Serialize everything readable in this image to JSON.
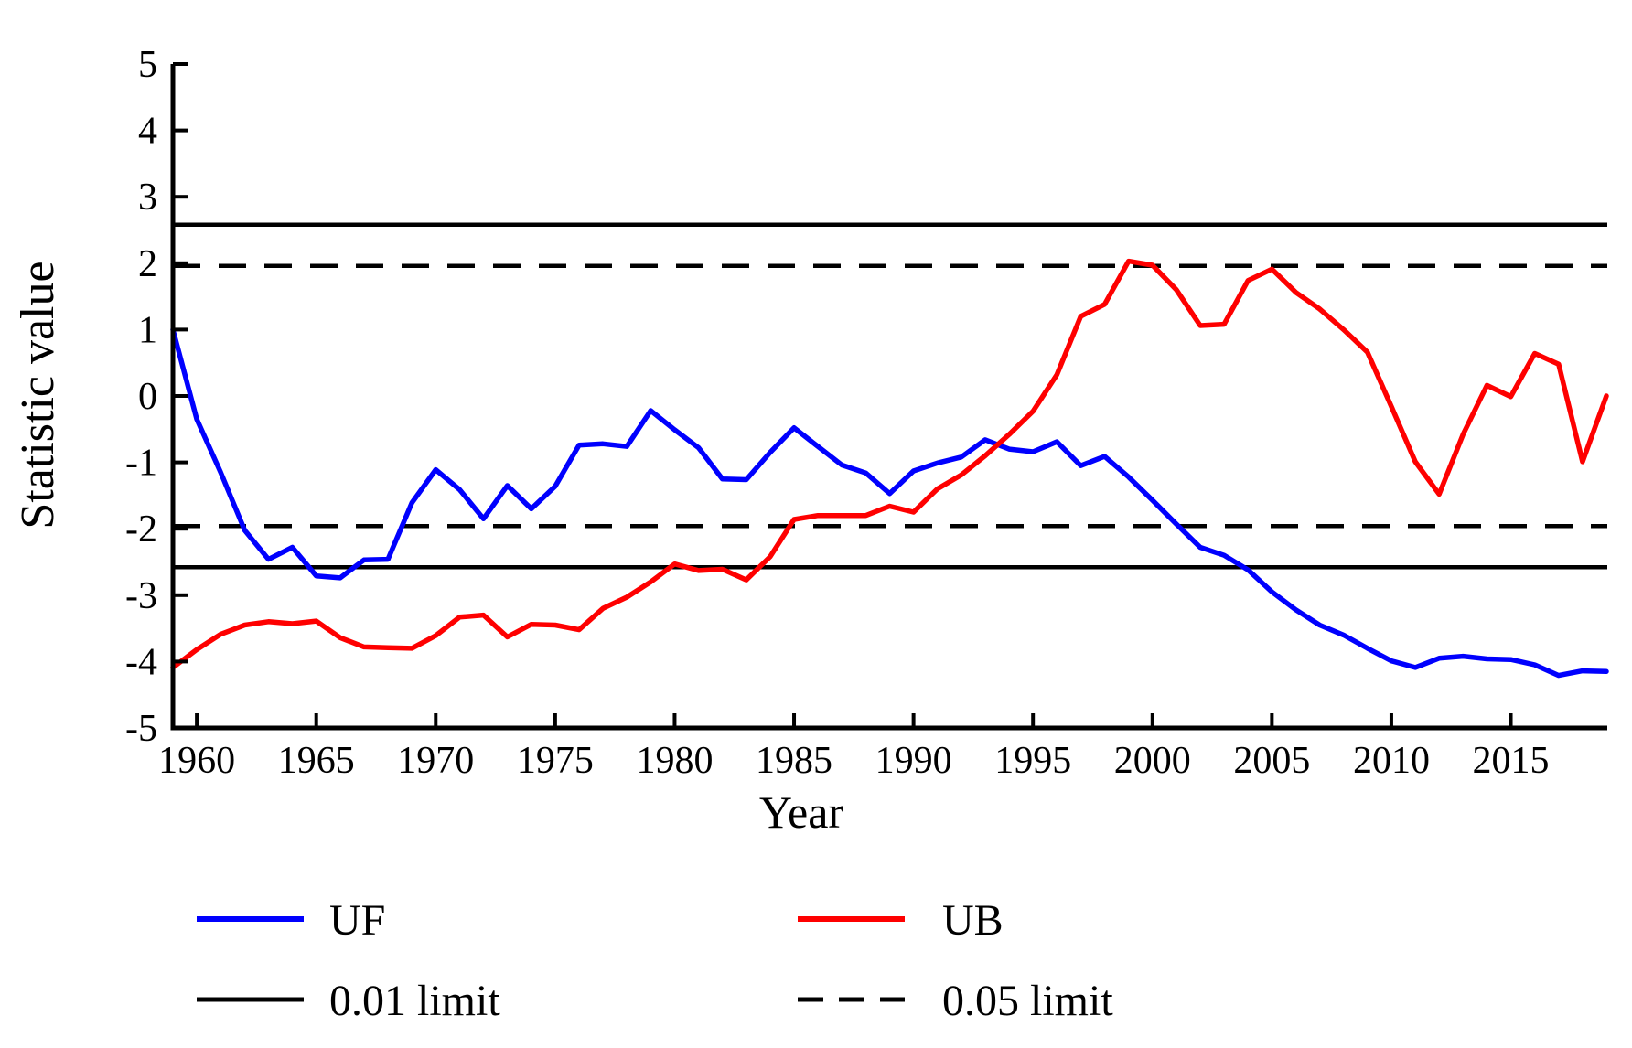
{
  "chart_data": {
    "type": "line",
    "title": "",
    "xlabel": "Year",
    "ylabel": "Statistic value",
    "xlim": [
      1959,
      2019
    ],
    "ylim": [
      -5,
      5
    ],
    "grid": false,
    "legend_position": "bottom",
    "x_ticks": [
      1960,
      1965,
      1970,
      1975,
      1980,
      1985,
      1990,
      1995,
      2000,
      2005,
      2010,
      2015
    ],
    "y_ticks": [
      5,
      4,
      3,
      2,
      1,
      0,
      -1,
      -2,
      -3,
      -4,
      -5
    ],
    "x": [
      1959,
      1960,
      1961,
      1962,
      1963,
      1964,
      1965,
      1966,
      1967,
      1968,
      1969,
      1970,
      1971,
      1972,
      1973,
      1974,
      1975,
      1976,
      1977,
      1978,
      1979,
      1980,
      1981,
      1982,
      1983,
      1984,
      1985,
      1986,
      1987,
      1988,
      1989,
      1990,
      1991,
      1992,
      1993,
      1994,
      1995,
      1996,
      1997,
      1998,
      1999,
      2000,
      2001,
      2002,
      2003,
      2004,
      2005,
      2006,
      2007,
      2008,
      2009,
      2010,
      2011,
      2012,
      2013,
      2014,
      2015,
      2016,
      2017,
      2018,
      2019
    ],
    "series": [
      {
        "name": "UF",
        "color": "#0000fe",
        "style": "solid",
        "values": [
          1.0,
          -0.35,
          -1.15,
          -2.02,
          -2.46,
          -2.28,
          -2.71,
          -2.74,
          -2.47,
          -2.46,
          -1.61,
          -1.11,
          -1.41,
          -1.85,
          -1.35,
          -1.7,
          -1.36,
          -0.74,
          -0.72,
          -0.76,
          -0.22,
          -0.51,
          -0.78,
          -1.25,
          -1.26,
          -0.85,
          -0.48,
          -0.76,
          -1.04,
          -1.16,
          -1.47,
          -1.13,
          -1.01,
          -0.92,
          -0.66,
          -0.8,
          -0.84,
          -0.69,
          -1.05,
          -0.91,
          -1.22,
          -1.57,
          -1.93,
          -2.28,
          -2.4,
          -2.62,
          -2.95,
          -3.22,
          -3.45,
          -3.6,
          -3.8,
          -3.99,
          -4.09,
          -3.95,
          -3.92,
          -3.96,
          -3.97,
          -4.05,
          -4.21,
          -4.14,
          -4.15
        ]
      },
      {
        "name": "UB",
        "color": "#fe0000",
        "style": "solid",
        "values": [
          -4.09,
          -3.82,
          -3.59,
          -3.45,
          -3.4,
          -3.43,
          -3.39,
          -3.64,
          -3.78,
          -3.79,
          -3.8,
          -3.61,
          -3.33,
          -3.3,
          -3.63,
          -3.44,
          -3.45,
          -3.52,
          -3.2,
          -3.03,
          -2.8,
          -2.53,
          -2.63,
          -2.61,
          -2.77,
          -2.42,
          -1.86,
          -1.8,
          -1.8,
          -1.8,
          -1.66,
          -1.75,
          -1.4,
          -1.19,
          -0.9,
          -0.58,
          -0.23,
          0.32,
          1.2,
          1.38,
          2.03,
          1.97,
          1.6,
          1.06,
          1.08,
          1.74,
          1.91,
          1.56,
          1.31,
          1.0,
          0.66,
          -0.16,
          -0.99,
          -1.48,
          -0.58,
          0.16,
          -0.01,
          0.64,
          0.48,
          -0.99,
          0.0
        ]
      }
    ],
    "limits": [
      {
        "name": "0.01 limit",
        "value": 2.58,
        "style": "solid",
        "color": "#000000"
      },
      {
        "name": "0.05 limit",
        "value": 1.96,
        "style": "dashed",
        "color": "#000000"
      }
    ]
  }
}
